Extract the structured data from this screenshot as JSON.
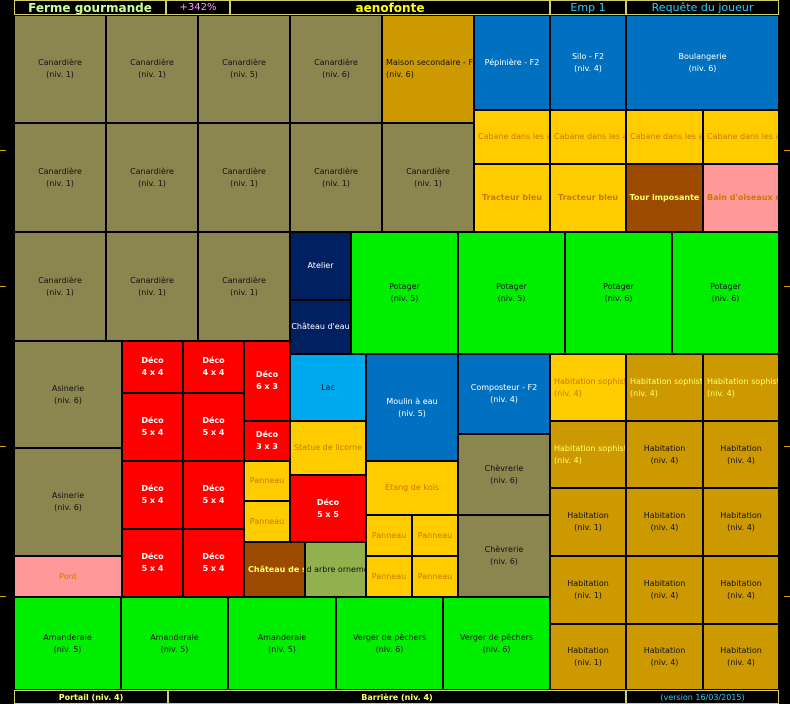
{
  "colors": {
    "canardiere": "#8B8550",
    "maison": "#CC9900",
    "bleu": "#0070C0",
    "cabane": "#FFCC00",
    "marron": "#9B4A00",
    "rose": "#FF9999",
    "vert": "#00EE00",
    "marine": "#002060",
    "rouge": "#FF0000",
    "ciel": "#00AAEE",
    "olive": "#92B04E",
    "habitation": "#CC9900"
  },
  "header": {
    "farm": "Ferme gourmande",
    "percent": "+342%",
    "player": "aenofonte",
    "emp": "Emp 1",
    "request": "Requête du joueur"
  },
  "footer": {
    "portail": "Portail (niv. 4)",
    "barriere": "Barrière (niv. 4)",
    "version": "(version 16/03/2015)"
  },
  "tiles": [
    {
      "name": "canardiere",
      "label": "Canardière",
      "level": "(niv. 1)"
    },
    {
      "name": "canardiere",
      "label": "Canardière",
      "level": "(niv. 1)"
    },
    {
      "name": "canardiere",
      "label": "Canardière",
      "level": "(niv. 5)"
    },
    {
      "name": "canardiere",
      "label": "Canardière",
      "level": "(niv. 6)"
    },
    {
      "name": "maison-secondaire",
      "label": "Maison secondaire - F2",
      "level": "(niv. 6)"
    },
    {
      "name": "pepiniere",
      "label": "Pépinière - F2",
      "level": ""
    },
    {
      "name": "silo",
      "label": "Silo - F2",
      "level": "(niv. 4)"
    },
    {
      "name": "boulangerie",
      "label": "Boulangerie",
      "level": "(niv. 6)"
    },
    {
      "name": "canardiere",
      "label": "Canardière",
      "level": "(niv. 1)"
    },
    {
      "name": "canardiere",
      "label": "Canardière",
      "level": "(niv. 1)"
    },
    {
      "name": "canardiere",
      "label": "Canardière",
      "level": "(niv. 1)"
    },
    {
      "name": "canardiere",
      "label": "Canardière",
      "level": "(niv. 1)"
    },
    {
      "name": "canardiere",
      "label": "Canardière",
      "level": "(niv. 1)"
    },
    {
      "name": "cabane",
      "label": "Cabane dans les arbres",
      "level": ""
    },
    {
      "name": "cabane",
      "label": "Cabane dans les arbres",
      "level": ""
    },
    {
      "name": "cabane",
      "label": "Cabane dans les arbres",
      "level": ""
    },
    {
      "name": "cabane",
      "label": "Cabane dans les arbres",
      "level": ""
    },
    {
      "name": "tracteur",
      "label": "Tracteur bleu",
      "level": ""
    },
    {
      "name": "tracteur",
      "label": "Tracteur bleu",
      "level": ""
    },
    {
      "name": "tour",
      "label": "Tour imposante",
      "level": ""
    },
    {
      "name": "bain-oiseaux",
      "label": "Bain d'oiseaux décoratif",
      "level": ""
    },
    {
      "name": "canardiere",
      "label": "Canardière",
      "level": "(niv. 1)"
    },
    {
      "name": "canardiere",
      "label": "Canardière",
      "level": "(niv. 1)"
    },
    {
      "name": "canardiere",
      "label": "Canardière",
      "level": "(niv. 1)"
    },
    {
      "name": "atelier",
      "label": "Atelier",
      "level": ""
    },
    {
      "name": "chateau-eau",
      "label": "Château d'eau",
      "level": ""
    },
    {
      "name": "potager",
      "label": "Potager",
      "level": "(niv. 5)"
    },
    {
      "name": "potager",
      "label": "Potager",
      "level": "(niv. 5)"
    },
    {
      "name": "potager",
      "label": "Potager",
      "level": "(niv. 6)"
    },
    {
      "name": "potager",
      "label": "Potager",
      "level": "(niv. 6)"
    },
    {
      "name": "asinerie",
      "label": "Asinerie",
      "level": "(niv. 6)"
    },
    {
      "name": "asinerie",
      "label": "Asinerie",
      "level": "(niv. 6)"
    },
    {
      "name": "pont",
      "label": "Pont",
      "level": ""
    },
    {
      "name": "deco",
      "label": "Déco",
      "level": "4 x 4"
    },
    {
      "name": "deco",
      "label": "Déco",
      "level": "4 x 4"
    },
    {
      "name": "deco",
      "label": "Déco",
      "level": "6 x 3"
    },
    {
      "name": "deco",
      "label": "Déco",
      "level": "5 x 4"
    },
    {
      "name": "deco",
      "label": "Déco",
      "level": "5 x 4"
    },
    {
      "name": "deco",
      "label": "Déco",
      "level": "3 x 3"
    },
    {
      "name": "deco",
      "label": "Déco",
      "level": "5 x 4"
    },
    {
      "name": "deco",
      "label": "Déco",
      "level": "5 x 4"
    },
    {
      "name": "deco",
      "label": "Déco",
      "level": "5 x 4"
    },
    {
      "name": "deco",
      "label": "Déco",
      "level": "5 x 4"
    },
    {
      "name": "lac",
      "label": "Lac",
      "level": ""
    },
    {
      "name": "statue-licorne",
      "label": "Statue de licorne",
      "level": ""
    },
    {
      "name": "panneau",
      "label": "Panneau",
      "level": ""
    },
    {
      "name": "panneau",
      "label": "Panneau",
      "level": ""
    },
    {
      "name": "deco",
      "label": "Déco",
      "level": "5 x 5"
    },
    {
      "name": "chateau-sable",
      "label": "Château de sable",
      "level": ""
    },
    {
      "name": "grand-arbre",
      "label": "Grand arbre ornemental",
      "level": ""
    },
    {
      "name": "moulin",
      "label": "Moulin à eau",
      "level": "(niv. 5)"
    },
    {
      "name": "etang",
      "label": "Étang de koïs",
      "level": ""
    },
    {
      "name": "panneau",
      "label": "Panneau",
      "level": ""
    },
    {
      "name": "panneau",
      "label": "Panneau",
      "level": ""
    },
    {
      "name": "panneau",
      "label": "Panneau",
      "level": ""
    },
    {
      "name": "panneau",
      "label": "Panneau",
      "level": ""
    },
    {
      "name": "composteur",
      "label": "Composteur - F2",
      "level": "(niv. 4)"
    },
    {
      "name": "chevrerie",
      "label": "Chèvrerie",
      "level": "(niv. 6)"
    },
    {
      "name": "chevrerie",
      "label": "Chèvrerie",
      "level": "(niv. 6)"
    },
    {
      "name": "habitation-sophistiquee",
      "label": "Habitation sophistiquée",
      "level": "(niv. 4)"
    },
    {
      "name": "habitation-sophistiquee",
      "label": "Habitation sophistiquée",
      "level": "(niv. 4)"
    },
    {
      "name": "habitation-sophistiquee",
      "label": "Habitation sophistiquée",
      "level": "(niv. 4)"
    },
    {
      "name": "habitation-sophistiquee",
      "label": "Habitation sophistiquée",
      "level": "(niv. 4)"
    },
    {
      "name": "habitation",
      "label": "Habitation",
      "level": "(niv. 4)"
    },
    {
      "name": "habitation",
      "label": "Habitation",
      "level": "(niv. 4)"
    },
    {
      "name": "habitation",
      "label": "Habitation",
      "level": "(niv. 1)"
    },
    {
      "name": "habitation",
      "label": "Habitation",
      "level": "(niv. 4)"
    },
    {
      "name": "habitation",
      "label": "Habitation",
      "level": "(niv. 4)"
    },
    {
      "name": "habitation",
      "label": "Habitation",
      "level": "(niv. 1)"
    },
    {
      "name": "habitation",
      "label": "Habitation",
      "level": "(niv. 4)"
    },
    {
      "name": "habitation",
      "label": "Habitation",
      "level": "(niv. 4)"
    },
    {
      "name": "habitation",
      "label": "Habitation",
      "level": "(niv. 1)"
    },
    {
      "name": "habitation",
      "label": "Habitation",
      "level": "(niv. 4)"
    },
    {
      "name": "habitation",
      "label": "Habitation",
      "level": "(niv. 4)"
    },
    {
      "name": "amanderaie",
      "label": "Amanderaie",
      "level": "(niv. 5)"
    },
    {
      "name": "amanderaie",
      "label": "Amanderaie",
      "level": "(niv. 5)"
    },
    {
      "name": "amanderaie",
      "label": "Amanderaie",
      "level": "(niv. 5)"
    },
    {
      "name": "verger-pechers",
      "label": "Verger de pêchers",
      "level": "(niv. 6)"
    },
    {
      "name": "verger-pechers",
      "label": "Verger de pêchers",
      "level": "(niv. 6)"
    }
  ]
}
